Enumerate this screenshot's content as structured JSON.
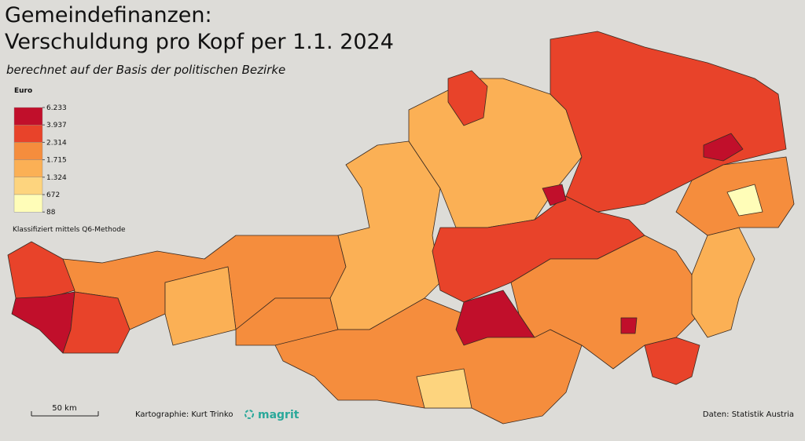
{
  "header": {
    "title_line1": "Gemeindefinanzen:",
    "title_line2": "Verschuldung pro Kopf per 1.1. 2024",
    "subtitle": "berechnet auf der Basis der politischen Bezirke"
  },
  "legend": {
    "title": "Euro",
    "breaks": [
      {
        "value": 6233,
        "label": "6.233"
      },
      {
        "value": 3937,
        "label": "3.937"
      },
      {
        "value": 2314,
        "label": "2.314"
      },
      {
        "value": 1715,
        "label": "1.715"
      },
      {
        "value": 1324,
        "label": "1.324"
      },
      672,
      88
    ],
    "colors": [
      "#c10f2b",
      "#e8432a",
      "#f58d3d",
      "#fbb055",
      "#fdd47e",
      "#fffdb8"
    ],
    "note": "Klassifiziert mittels Q6-Methode"
  },
  "footer": {
    "scale": "50 km",
    "credit": "Kartographie: Kurt Trinko",
    "logo": "magrit",
    "source": "Daten: Statistik Austria"
  }
}
